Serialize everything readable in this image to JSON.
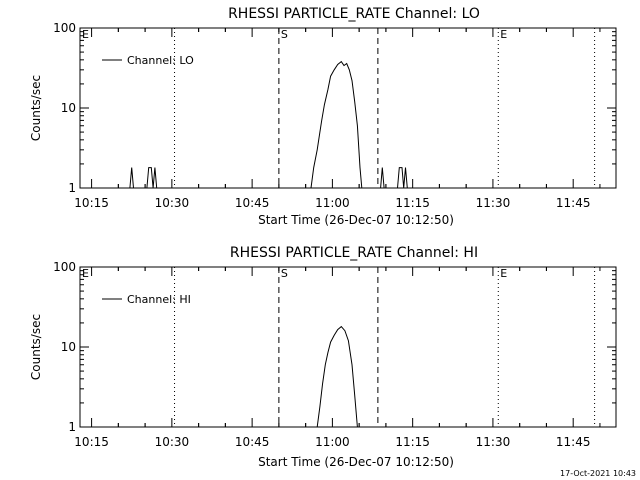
{
  "chart_data": [
    {
      "type": "line",
      "title": "RHESSI PARTICLE_RATE Channel: LO",
      "xlabel": "Start Time (26-Dec-07 10:12:50)",
      "ylabel": "Counts/sec",
      "y_scale": "log",
      "ylim": [
        1,
        100
      ],
      "xlim": [
        "10:12:50",
        "11:53:00"
      ],
      "x_ticks": [
        "10:15",
        "10:30",
        "10:45",
        "11:00",
        "11:15",
        "11:30",
        "11:45"
      ],
      "y_ticks": [
        "1",
        "10",
        "100"
      ],
      "legend": {
        "placement": "top-left",
        "entries": [
          "Channel: LO"
        ]
      },
      "markers": [
        {
          "label": "E",
          "time": "10:12:50",
          "style": "dotted"
        },
        {
          "label": "",
          "time": "10:30:30",
          "style": "dotted"
        },
        {
          "label": "S",
          "time": "10:50:00",
          "style": "dashed"
        },
        {
          "label": "",
          "time": "11:08:30",
          "style": "dashed"
        },
        {
          "label": "E",
          "time": "11:31:00",
          "style": "dotted"
        },
        {
          "label": "",
          "time": "11:49:00",
          "style": "dotted"
        }
      ],
      "series": [
        {
          "name": "Channel: LO",
          "points": [
            [
              "10:22:10",
              1
            ],
            [
              "10:22:30",
              1.8
            ],
            [
              "10:22:50",
              1
            ],
            [
              "10:25:20",
              1
            ],
            [
              "10:25:40",
              1.8
            ],
            [
              "10:26:10",
              1.8
            ],
            [
              "10:26:30",
              1
            ],
            [
              "10:26:50",
              1.8
            ],
            [
              "10:27:10",
              1
            ],
            [
              "10:56:00",
              1
            ],
            [
              "10:56:30",
              1.8
            ],
            [
              "10:57:10",
              3
            ],
            [
              "10:57:40",
              5
            ],
            [
              "10:58:00",
              7
            ],
            [
              "10:58:30",
              11
            ],
            [
              "10:59:10",
              17
            ],
            [
              "10:59:40",
              25
            ],
            [
              "11:00:20",
              30
            ],
            [
              "11:01:00",
              35
            ],
            [
              "11:01:40",
              38
            ],
            [
              "11:02:10",
              34
            ],
            [
              "11:02:40",
              36
            ],
            [
              "11:03:10",
              30
            ],
            [
              "11:03:40",
              22
            ],
            [
              "11:04:10",
              12
            ],
            [
              "11:04:40",
              6
            ],
            [
              "11:05:10",
              1.8
            ],
            [
              "11:05:30",
              1
            ],
            [
              "11:09:00",
              1
            ],
            [
              "11:09:20",
              1.8
            ],
            [
              "11:09:40",
              1
            ],
            [
              "11:12:10",
              1
            ],
            [
              "11:12:30",
              1.8
            ],
            [
              "11:13:00",
              1.8
            ],
            [
              "11:13:20",
              1
            ],
            [
              "11:13:40",
              1.8
            ],
            [
              "11:14:00",
              1
            ]
          ]
        }
      ]
    },
    {
      "type": "line",
      "title": "RHESSI PARTICLE_RATE Channel: HI",
      "xlabel": "Start Time (26-Dec-07 10:12:50)",
      "ylabel": "Counts/sec",
      "y_scale": "log",
      "ylim": [
        1,
        100
      ],
      "xlim": [
        "10:12:50",
        "11:53:00"
      ],
      "x_ticks": [
        "10:15",
        "10:30",
        "10:45",
        "11:00",
        "11:15",
        "11:30",
        "11:45"
      ],
      "y_ticks": [
        "1",
        "10",
        "100"
      ],
      "legend": {
        "placement": "top-left",
        "entries": [
          "Channel: HI"
        ]
      },
      "markers": [
        {
          "label": "E",
          "time": "10:12:50",
          "style": "dotted"
        },
        {
          "label": "",
          "time": "10:30:30",
          "style": "dotted"
        },
        {
          "label": "S",
          "time": "10:50:00",
          "style": "dashed"
        },
        {
          "label": "",
          "time": "11:08:30",
          "style": "dashed"
        },
        {
          "label": "E",
          "time": "11:31:00",
          "style": "dotted"
        },
        {
          "label": "",
          "time": "11:49:00",
          "style": "dotted"
        }
      ],
      "series": [
        {
          "name": "Channel: HI",
          "points": [
            [
              "10:57:10",
              1
            ],
            [
              "10:57:40",
              1.8
            ],
            [
              "10:58:10",
              3.5
            ],
            [
              "10:58:40",
              6
            ],
            [
              "10:59:10",
              8.5
            ],
            [
              "10:59:40",
              11.5
            ],
            [
              "11:00:20",
              14
            ],
            [
              "11:01:00",
              16.5
            ],
            [
              "11:01:40",
              18
            ],
            [
              "11:02:20",
              16
            ],
            [
              "11:03:00",
              12
            ],
            [
              "11:03:40",
              6
            ],
            [
              "11:04:10",
              2.5
            ],
            [
              "11:04:40",
              1
            ]
          ]
        }
      ]
    }
  ],
  "footer": {
    "timestamp": "17-Oct-2021 10:43"
  }
}
